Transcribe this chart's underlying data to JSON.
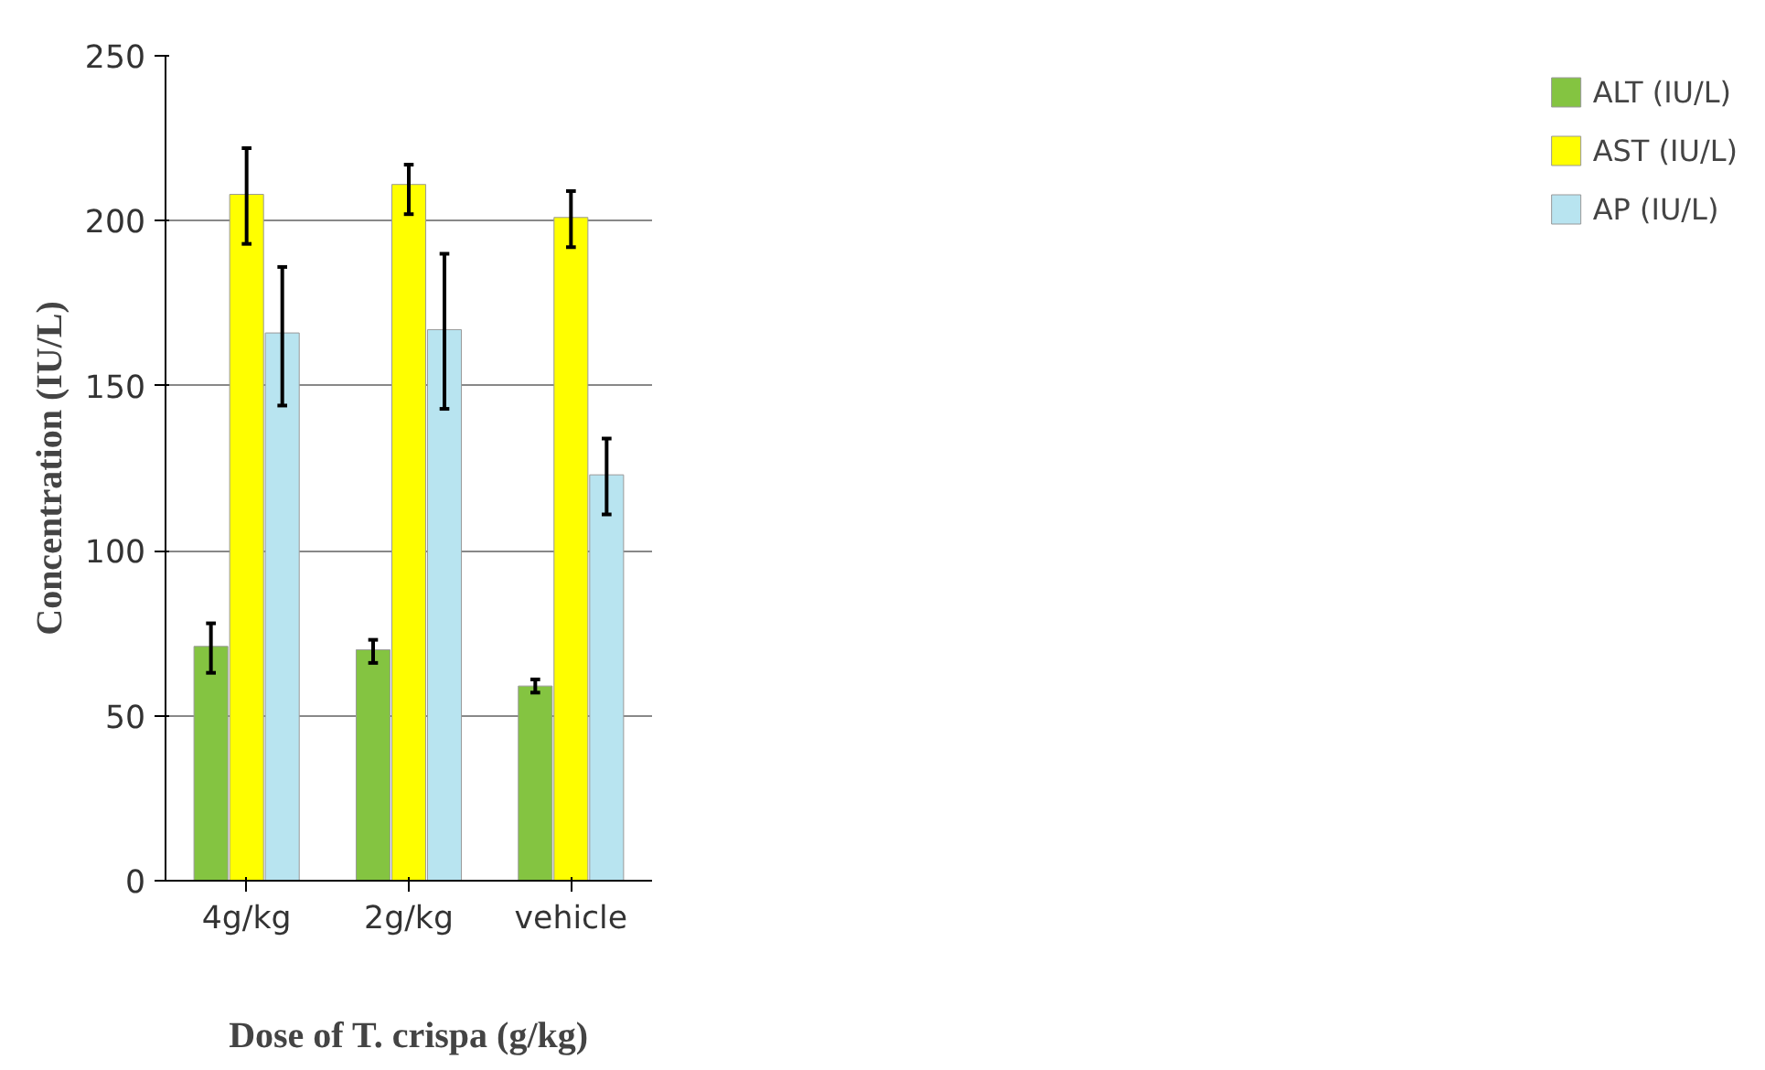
{
  "chart_data": {
    "type": "bar",
    "categories": [
      "4g/kg",
      "2g/kg",
      "vehicle"
    ],
    "xlabel": "Dose of T. crispa (g/kg)",
    "ylabel": "Concentration (IU/L)",
    "ylim": [
      0,
      250
    ],
    "yticks": [
      0,
      50,
      100,
      150,
      200,
      250
    ],
    "grid": "y",
    "legend": "right",
    "series": [
      {
        "name": "ALT (IU/L)",
        "color": "#84c441",
        "values": [
          71,
          70,
          59
        ],
        "errors": [
          [
            63,
            78
          ],
          [
            66,
            73
          ],
          [
            57,
            61
          ]
        ]
      },
      {
        "name": "AST (IU/L)",
        "color": "#ffff00",
        "values": [
          208,
          211,
          201
        ],
        "errors": [
          [
            193,
            222
          ],
          [
            202,
            217
          ],
          [
            192,
            209
          ]
        ]
      },
      {
        "name": "AP (IU/L)",
        "color": "#b8e4f0",
        "values": [
          166,
          167,
          123
        ],
        "errors": [
          [
            144,
            186
          ],
          [
            143,
            190
          ],
          [
            111,
            134
          ]
        ]
      }
    ]
  }
}
